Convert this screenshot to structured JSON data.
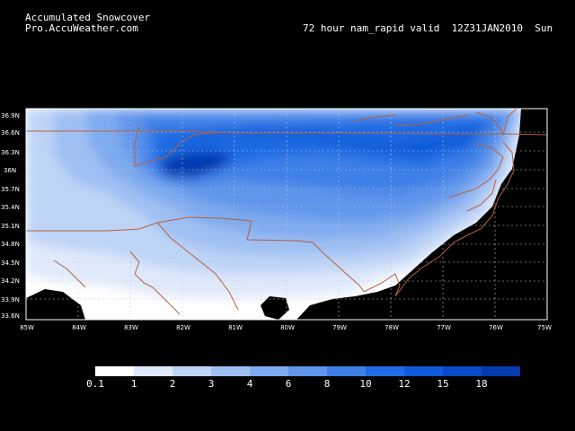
{
  "header": {
    "title": "Accumulated Snowcover",
    "source": "Pro.AccuWeather.com",
    "run_info": "72 hour nam_rapid valid  12Z31JAN2010  Sun"
  },
  "map": {
    "lat_labels": [
      "36.9N",
      "36.6N",
      "36.3N",
      "36N",
      "35.7N",
      "35.4N",
      "35.1N",
      "34.8N",
      "34.5N",
      "34.2N",
      "33.9N",
      "33.6N"
    ],
    "lon_labels": [
      "85W",
      "84W",
      "83W",
      "82W",
      "81W",
      "80W",
      "79W",
      "78W",
      "77W",
      "76W",
      "75W"
    ],
    "colors": {
      "background": "#000000",
      "border_lines": "#b46040",
      "grid_lines": "#c8c8c8"
    }
  },
  "legend": {
    "labels": [
      "0.1",
      "1",
      "2",
      "3",
      "4",
      "6",
      "8",
      "10",
      "12",
      "15",
      "18"
    ],
    "colors": [
      "#ffffff",
      "#dfe9fb",
      "#bed4f7",
      "#9ebff3",
      "#7eaaef",
      "#5e95eb",
      "#3e80e7",
      "#1e6be3",
      "#0f5ad8",
      "#0a4ac8",
      "#063bb0"
    ]
  }
}
